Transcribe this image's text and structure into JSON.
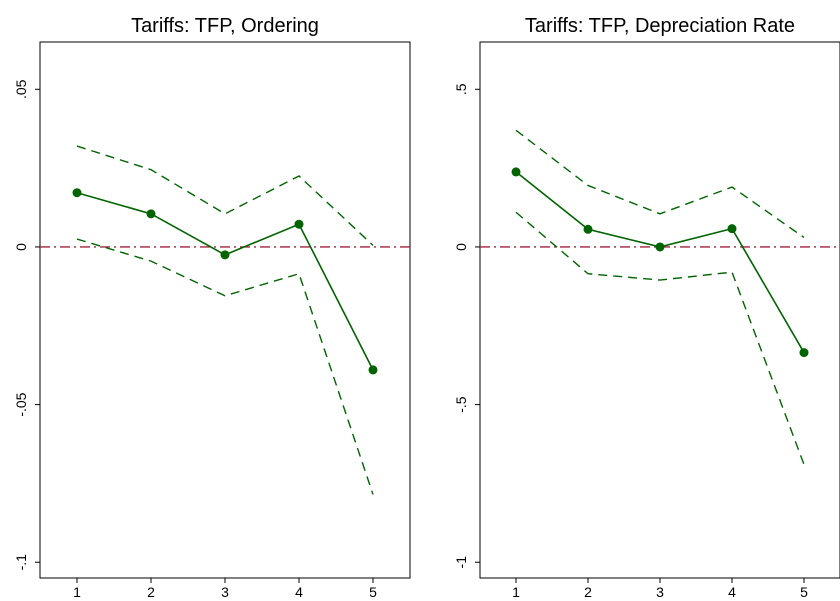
{
  "chart_data": [
    {
      "type": "line",
      "title": "Tariffs: TFP, Ordering",
      "xlabel": "",
      "ylabel": "",
      "x": [
        1,
        2,
        3,
        4,
        5
      ],
      "xticks": [
        "1",
        "2",
        "3",
        "4",
        "5"
      ],
      "yticks": [
        {
          "value": 0.05,
          "label": ".05"
        },
        {
          "value": 0,
          "label": "0"
        },
        {
          "value": -0.05,
          "label": "-.05"
        },
        {
          "value": -0.1,
          "label": "-.1"
        }
      ],
      "xlim": [
        0.5,
        5.5
      ],
      "ylim": [
        -0.105,
        0.065
      ],
      "grid": false,
      "reference_line": 0,
      "series": [
        {
          "role": "estimate",
          "values": [
            0.0172,
            0.0105,
            -0.0025,
            0.0072,
            -0.039
          ]
        },
        {
          "role": "upper",
          "values": [
            0.032,
            0.0245,
            0.0105,
            0.0225,
            0.0005
          ]
        },
        {
          "role": "lower",
          "values": [
            0.0025,
            -0.0045,
            -0.0155,
            -0.0085,
            -0.0785
          ]
        }
      ]
    },
    {
      "type": "line",
      "title": "Tariffs: TFP, Depreciation Rate",
      "xlabel": "",
      "ylabel": "",
      "x": [
        1,
        2,
        3,
        4,
        5
      ],
      "xticks": [
        "1",
        "2",
        "3",
        "4",
        "5"
      ],
      "yticks": [
        {
          "value": 0.5,
          "label": ".5"
        },
        {
          "value": 0,
          "label": "0"
        },
        {
          "value": -0.5,
          "label": "-.5"
        },
        {
          "value": -1,
          "label": "-1"
        }
      ],
      "xlim": [
        0.5,
        5.5
      ],
      "ylim": [
        -1.05,
        0.65
      ],
      "grid": false,
      "reference_line": 0,
      "series": [
        {
          "role": "estimate",
          "values": [
            0.238,
            0.056,
            0.0,
            0.058,
            -0.335
          ]
        },
        {
          "role": "upper",
          "values": [
            0.37,
            0.195,
            0.105,
            0.19,
            0.03
          ]
        },
        {
          "role": "lower",
          "values": [
            0.11,
            -0.085,
            -0.105,
            -0.08,
            -0.69
          ]
        }
      ]
    }
  ],
  "colors": {
    "estimate": "#006400",
    "band": "#006400",
    "reference": "#a0203a",
    "axis": "#000000"
  }
}
